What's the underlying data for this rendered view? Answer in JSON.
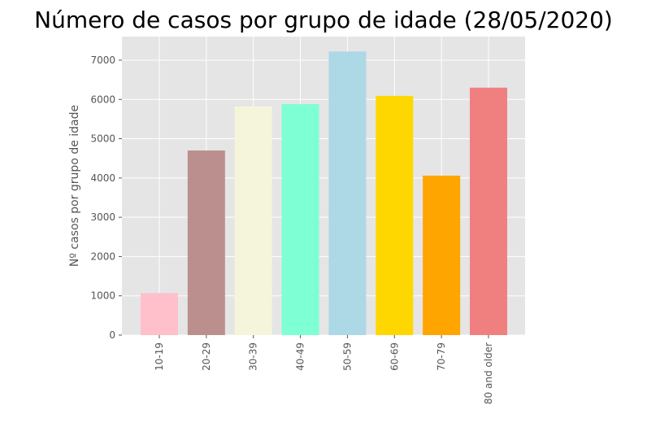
{
  "chart_data": {
    "type": "bar",
    "title": "Número de casos por grupo de idade (28/05/2020)",
    "xlabel": "",
    "ylabel": "Nº casos por grupo de idade",
    "categories": [
      "10-19",
      "20-29",
      "30-39",
      "40-49",
      "50-59",
      "60-69",
      "70-79",
      "80 and older"
    ],
    "values": [
      1070,
      4700,
      5820,
      5880,
      7220,
      6090,
      4060,
      6300
    ],
    "colors": [
      "#ffc0cb",
      "#bc8f8f",
      "#f5f5dc",
      "#7fffd4",
      "#add8e6",
      "#ffd700",
      "#ffa500",
      "#f08080"
    ],
    "ylim": [
      0,
      7600
    ],
    "yticks": [
      0,
      1000,
      2000,
      3000,
      4000,
      5000,
      6000,
      7000
    ],
    "grid": true,
    "background": "#e5e5e5",
    "style": "ggplot"
  }
}
